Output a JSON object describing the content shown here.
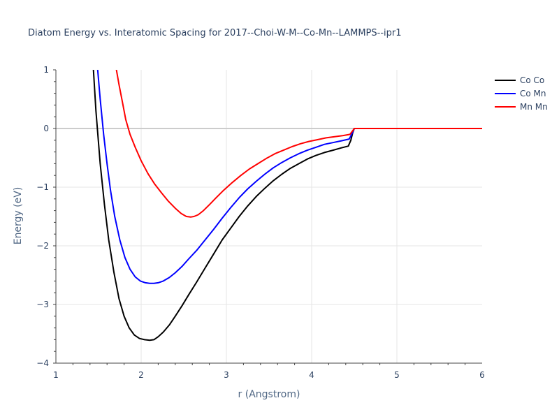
{
  "chart_data": {
    "type": "line",
    "title": "Diatom Energy vs. Interatomic Spacing for 2017--Choi-W-M--Co-Mn--LAMMPS--ipr1",
    "xlabel": "r (Angstrom)",
    "ylabel": "Energy (eV)",
    "xlim": [
      1,
      6
    ],
    "ylim": [
      -4,
      1
    ],
    "xticks": [
      "1",
      "2",
      "3",
      "4",
      "5",
      "6"
    ],
    "yticks": [
      "1",
      "0",
      "−1",
      "−2",
      "−3",
      "−4"
    ],
    "grid": true,
    "legend_position": "top-right",
    "series": [
      {
        "name": "Co Co",
        "color": "#000000",
        "x": [
          1.44,
          1.47,
          1.52,
          1.57,
          1.62,
          1.68,
          1.74,
          1.8,
          1.86,
          1.92,
          1.98,
          2.04,
          2.1,
          2.15,
          2.2,
          2.26,
          2.33,
          2.4,
          2.48,
          2.56,
          2.65,
          2.75,
          2.85,
          2.95,
          3.05,
          3.15,
          3.25,
          3.35,
          3.45,
          3.55,
          3.65,
          3.75,
          3.85,
          3.95,
          4.05,
          4.15,
          4.25,
          4.35,
          4.43,
          4.46,
          4.48,
          4.5,
          4.55,
          5.0,
          5.5,
          6.0
        ],
        "values": [
          1.0,
          0.3,
          -0.6,
          -1.3,
          -1.9,
          -2.45,
          -2.9,
          -3.2,
          -3.4,
          -3.52,
          -3.58,
          -3.6,
          -3.61,
          -3.6,
          -3.55,
          -3.47,
          -3.35,
          -3.2,
          -3.02,
          -2.83,
          -2.62,
          -2.38,
          -2.14,
          -1.9,
          -1.7,
          -1.5,
          -1.32,
          -1.16,
          -1.02,
          -0.89,
          -0.78,
          -0.68,
          -0.6,
          -0.52,
          -0.46,
          -0.41,
          -0.37,
          -0.33,
          -0.3,
          -0.2,
          -0.08,
          0.0,
          0.0,
          0.0,
          0.0,
          0.0
        ]
      },
      {
        "name": "Co Mn",
        "color": "#0000ff",
        "x": [
          1.49,
          1.52,
          1.56,
          1.6,
          1.64,
          1.69,
          1.75,
          1.81,
          1.87,
          1.93,
          1.99,
          2.05,
          2.1,
          2.15,
          2.2,
          2.26,
          2.33,
          2.4,
          2.48,
          2.56,
          2.65,
          2.75,
          2.85,
          2.95,
          3.05,
          3.15,
          3.25,
          3.35,
          3.45,
          3.55,
          3.65,
          3.75,
          3.85,
          3.95,
          4.05,
          4.15,
          4.25,
          4.35,
          4.44,
          4.47,
          4.5,
          4.55,
          5.0,
          5.5,
          6.0
        ],
        "values": [
          1.0,
          0.5,
          -0.1,
          -0.6,
          -1.05,
          -1.5,
          -1.9,
          -2.2,
          -2.4,
          -2.53,
          -2.6,
          -2.63,
          -2.64,
          -2.64,
          -2.63,
          -2.6,
          -2.54,
          -2.46,
          -2.35,
          -2.22,
          -2.08,
          -1.9,
          -1.72,
          -1.53,
          -1.35,
          -1.18,
          -1.03,
          -0.9,
          -0.78,
          -0.67,
          -0.58,
          -0.5,
          -0.43,
          -0.37,
          -0.32,
          -0.27,
          -0.24,
          -0.21,
          -0.18,
          -0.1,
          0.0,
          0.0,
          0.0,
          0.0,
          0.0
        ]
      },
      {
        "name": "Mn Mn",
        "color": "#ff0000",
        "x": [
          1.71,
          1.74,
          1.78,
          1.82,
          1.87,
          1.93,
          2.0,
          2.08,
          2.16,
          2.24,
          2.32,
          2.4,
          2.47,
          2.53,
          2.58,
          2.62,
          2.67,
          2.73,
          2.8,
          2.88,
          2.97,
          3.07,
          3.17,
          3.27,
          3.37,
          3.47,
          3.57,
          3.67,
          3.77,
          3.87,
          3.97,
          4.07,
          4.17,
          4.27,
          4.37,
          4.45,
          4.48,
          4.5,
          4.55,
          5.0,
          5.5,
          6.0
        ],
        "values": [
          1.0,
          0.75,
          0.45,
          0.15,
          -0.1,
          -0.32,
          -0.55,
          -0.77,
          -0.95,
          -1.1,
          -1.24,
          -1.36,
          -1.45,
          -1.5,
          -1.51,
          -1.5,
          -1.47,
          -1.4,
          -1.3,
          -1.18,
          -1.05,
          -0.92,
          -0.8,
          -0.69,
          -0.6,
          -0.51,
          -0.43,
          -0.37,
          -0.31,
          -0.26,
          -0.22,
          -0.19,
          -0.16,
          -0.14,
          -0.12,
          -0.1,
          -0.04,
          0.0,
          0.0,
          0.0,
          0.0,
          0.0
        ]
      }
    ]
  }
}
